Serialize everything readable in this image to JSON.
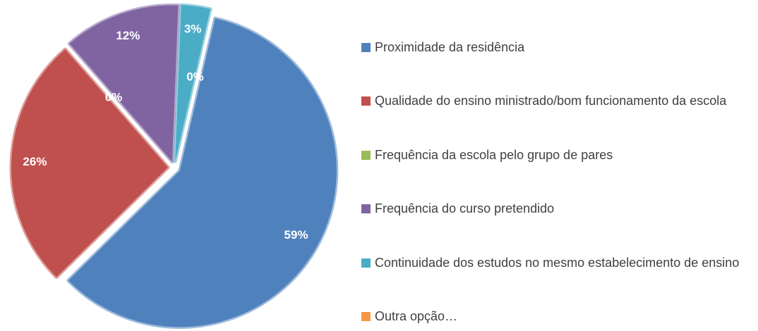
{
  "chart_data": {
    "type": "pie",
    "categories": [
      "Proximidade da residência",
      "Qualidade do ensino ministrado/bom funcionamento da escola",
      "Frequência da escola pelo grupo de pares",
      "Frequência do curso pretendido",
      "Continuidade dos estudos no mesmo estabelecimento de ensino",
      "Outra opção…"
    ],
    "values": [
      59,
      26,
      0,
      12,
      3,
      0
    ],
    "value_labels": [
      "59%",
      "26%",
      "0%",
      "12%",
      "3%",
      "0%"
    ],
    "colors": [
      "#4f81bd",
      "#c0504d",
      "#9bbb59",
      "#8064a2",
      "#4bacc6",
      "#f79646"
    ],
    "legend": "right"
  }
}
